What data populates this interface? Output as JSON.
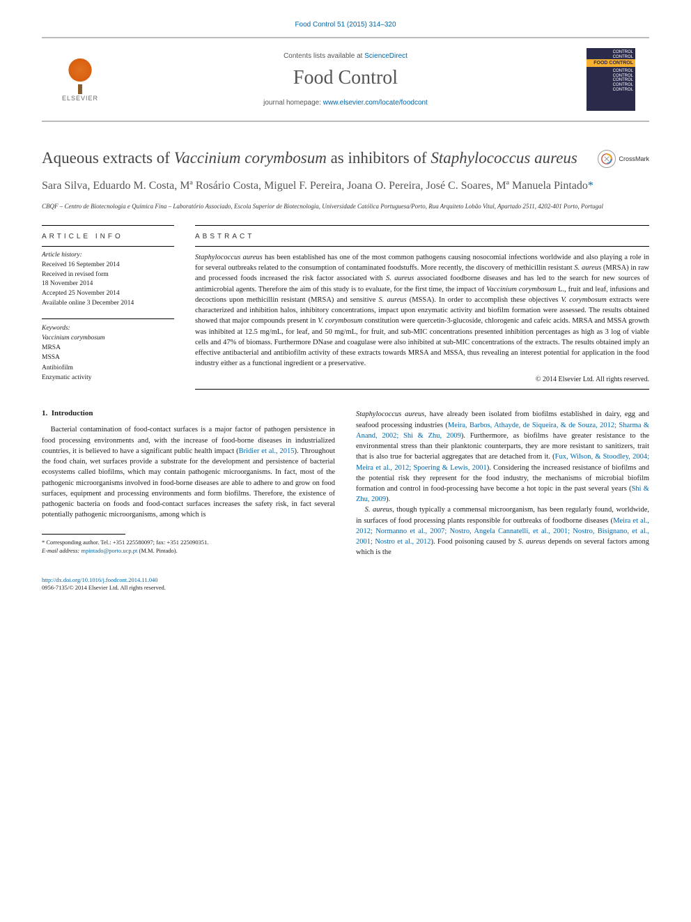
{
  "citation": {
    "text": "Food Control 51 (2015) 314–320",
    "color": "#0066aa",
    "fontsize": 10
  },
  "header": {
    "contents_prefix": "Contents lists available at ",
    "contents_link": "ScienceDirect",
    "journal_name": "Food Control",
    "homepage_prefix": "journal homepage: ",
    "homepage_link": "www.elsevier.com/locate/foodcont",
    "publisher_label": "ELSEVIER",
    "cover_lines": [
      "CONTROL",
      "CONTROL",
      "FOOD CONTROL",
      "CONTROL",
      "CONTROL",
      "CONTROL",
      "CONTROL",
      "CONTROL"
    ]
  },
  "title": {
    "html": "Aqueous extracts of <em>Vaccinium corymbosum</em> as inhibitors of <em>Staphylococcus aureus</em>",
    "fontsize": 23,
    "color": "#444444"
  },
  "crossmark_label": "CrossMark",
  "authors": {
    "text": "Sara Silva, Eduardo M. Costa, Mª Rosário Costa, Miguel F. Pereira, Joana O. Pereira, José C. Soares, Mª Manuela Pintado",
    "corresponding_mark": "*",
    "fontsize": 16
  },
  "affiliation": "CBQF – Centro de Biotecnologia e Química Fina – Laboratório Associado, Escola Superior de Biotecnologia, Universidade Católica Portuguesa/Porto, Rua Arquiteto Lobão Vital, Apartado 2511, 4202-401 Porto, Portugal",
  "article_info": {
    "header": "ARTICLE INFO",
    "history_label": "Article history:",
    "received": "Received 16 September 2014",
    "revised": "Received in revised form",
    "revised_date": "18 November 2014",
    "accepted": "Accepted 25 November 2014",
    "online": "Available online 3 December 2014",
    "keywords_label": "Keywords:",
    "keywords": [
      "<em>Vaccinium corymbosum</em>",
      "MRSA",
      "MSSA",
      "Antibiofilm",
      "Enzymatic activity"
    ]
  },
  "abstract": {
    "header": "ABSTRACT",
    "body_html": "<em>Staphylococcus aureus</em> has been established has one of the most common pathogens causing nosocomial infections worldwide and also playing a role in for several outbreaks related to the consumption of contaminated foodstuffs. More recently, the discovery of methicillin resistant <em>S. aureus</em> (MRSA) in raw and processed foods increased the risk factor associated with <em>S. aureus</em> associated foodborne diseases and has led to the search for new sources of antimicrobial agents. Therefore the aim of this study is to evaluate, for the first time, the impact of <em>Vaccinium corymbosum</em> L., fruit and leaf, infusions and decoctions upon methicillin resistant (MRSA) and sensitive <em>S. aureus</em> (MSSA). In order to accomplish these objectives <em>V. corymbosum</em> extracts were characterized and inhibition halos, inhibitory concentrations, impact upon enzymatic activity and biofilm formation were assessed. The results obtained showed that major compounds present in <em>V. corymbosum</em> constitution were quercetin-3-glucoside, chlorogenic and cafeic acids. MRSA and MSSA growth was inhibited at 12.5 mg/mL, for leaf, and 50 mg/mL, for fruit, and sub-MIC concentrations presented inhibition percentages as high as 3 log of viable cells and 47% of biomass. Furthermore DNase and coagulase were also inhibited at sub-MIC concentrations of the extracts. The results obtained imply an effective antibacterial and antibiofilm activity of these extracts towards MRSA and MSSA, thus revealing an interest potential for application in the food industry either as a functional ingredient or a preservative.",
    "copyright": "© 2014 Elsevier Ltd. All rights reserved.",
    "fontsize": 10.5
  },
  "body": {
    "section_number": "1.",
    "section_title": "Introduction",
    "col1_html": "Bacterial contamination of food-contact surfaces is a major factor of pathogen persistence in food processing environments and, with the increase of food-borne diseases in industrialized countries, it is believed to have a significant public health impact (<a href=\"#\">Bridier et al., 2015</a>). Throughout the food chain, wet surfaces provide a substrate for the development and persistence of bacterial ecosystems called biofilms, which may contain pathogenic microorganisms. In fact, most of the pathogenic microorganisms involved in food-borne diseases are able to adhere to and grow on food surfaces, equipment and processing environments and form biofilms. Therefore, the existence of pathogenic bacteria on foods and food-contact surfaces increases the safety risk, in fact several potentially pathogenic microorganisms, among which is",
    "col2_p1_html": "<em>Staphylococcus aureus</em>, have already been isolated from biofilms established in dairy, egg and seafood processing industries (<a href=\"#\">Meira, Barbos, Athayde, de Siqueira, &amp; de Souza, 2012; Sharma &amp; Anand, 2002; Shi &amp; Zhu, 2009</a>). Furthermore, as biofilms have greater resistance to the environmental stress than their planktonic counterparts, they are more resistant to sanitizers, trait that is also true for bacterial aggregates that are detached from it. (<a href=\"#\">Fux, Wilson, &amp; Stoodley, 2004; Meira et al., 2012; Spoering &amp; Lewis, 2001</a>). Considering the increased resistance of biofilms and the potential risk they represent for the food industry, the mechanisms of microbial biofilm formation and control in food-processing have become a hot topic in the past several years (<a href=\"#\">Shi &amp; Zhu, 2009</a>).",
    "col2_p2_html": "<em>S. aureus</em>, though typically a commensal microorganism, has been regularly found, worldwide, in surfaces of food processing plants responsible for outbreaks of foodborne diseases (<a href=\"#\">Meira et al., 2012; Normanno et al., 2007; Nostro, Angela Cannatelli, et al., 2001; Nostro, Bisignano, et al., 2001; Nostro et al., 2012</a>). Food poisoning caused by <em>S. aureus</em> depends on several factors among which is the"
  },
  "footnote": {
    "corresponding": "* Corresponding author. Tel.: +351 225580097; fax: +351 225090351.",
    "email_label": "E-mail address:",
    "email": "mpintado@porto.ucp.pt",
    "email_suffix": "(M.M. Pintado)."
  },
  "footer": {
    "doi": "http://dx.doi.org/10.1016/j.foodcont.2014.11.040",
    "issn": "0956-7135/© 2014 Elsevier Ltd. All rights reserved."
  },
  "colors": {
    "link": "#0066aa",
    "text": "#1a1a1a",
    "heading": "#444444",
    "rule": "#000000",
    "elsevier_orange": "#e07020"
  }
}
